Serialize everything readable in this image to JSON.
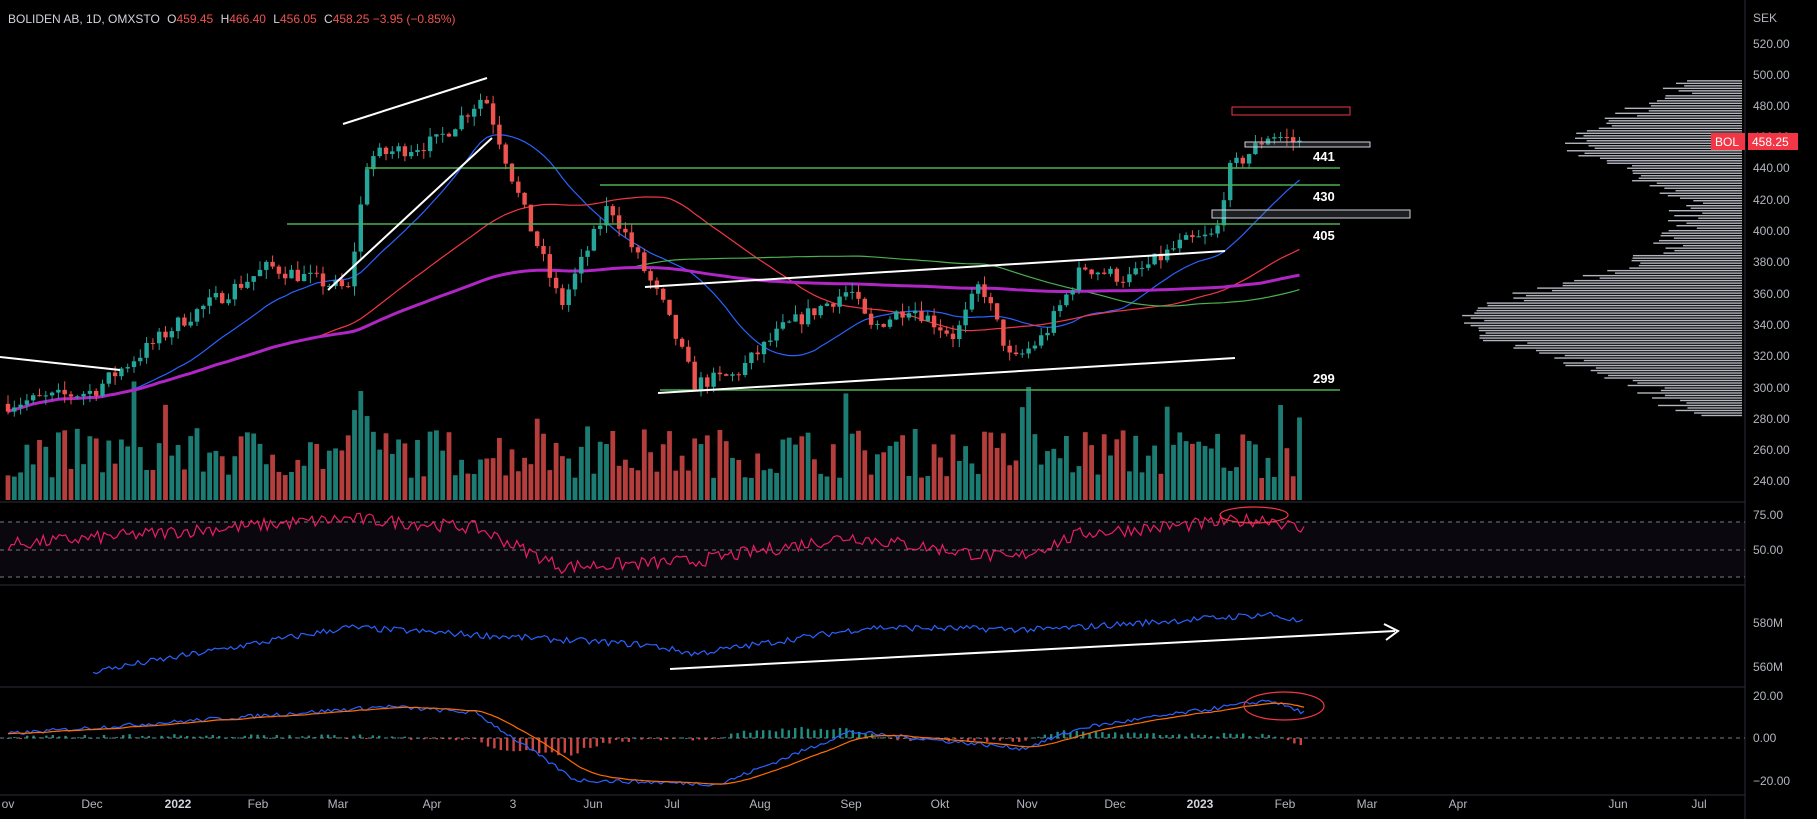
{
  "header": {
    "symbol": "BOLIDEN AB, 1D, OMXSTO",
    "o_label": "O",
    "o": "459.45",
    "h_label": "H",
    "h": "466.40",
    "l_label": "L",
    "l": "456.05",
    "c_label": "C",
    "c": "458.25",
    "change": "−3.95 (−0.85%)"
  },
  "price_axis": {
    "currency": "SEK",
    "ticks": [
      "520.00",
      "500.00",
      "480.00",
      "460.00",
      "440.00",
      "420.00",
      "400.00",
      "380.00",
      "360.00",
      "340.00",
      "320.00",
      "300.00",
      "280.00",
      "260.00",
      "240.00"
    ],
    "last_label": "BOL",
    "last_value": "458.25"
  },
  "rsi_axis": {
    "ticks": [
      "75.00",
      "50.00"
    ]
  },
  "obv_axis": {
    "ticks": [
      "580M",
      "560M"
    ]
  },
  "macd_axis": {
    "ticks": [
      "20.00",
      "0.00",
      "−20.00"
    ]
  },
  "time_axis": {
    "labels": [
      "ov",
      "Dec",
      "2022",
      "Feb",
      "Mar",
      "Apr",
      "3",
      "Jun",
      "Jul",
      "Aug",
      "Sep",
      "Okt",
      "Nov",
      "Dec",
      "2023",
      "Feb",
      "Mar",
      "Apr",
      "Jun",
      "Jul"
    ]
  },
  "annotations": {
    "levels": [
      "441",
      "430",
      "405",
      "299"
    ]
  },
  "colors": {
    "background": "#000000",
    "up": "#26a69a",
    "down": "#ef5350",
    "sma_fast": "#2962ff",
    "sma_mid": "#f23645",
    "sma_slow": "#4caf50",
    "sma_long": "#b026c4",
    "rsi": "#e91e63",
    "obv": "#2962ff",
    "macd": "#2962ff",
    "signal": "#ff6d00",
    "levels": "#4caf50",
    "trendline": "#ffffff",
    "volume_profile": "#b2b5be"
  },
  "chart_data": {
    "type": "candlestick",
    "symbol": "BOLIDEN AB",
    "interval": "1D",
    "exchange": "OMXSTO",
    "last": {
      "open": 459.45,
      "high": 466.4,
      "low": 456.05,
      "close": 458.25,
      "change": -3.95,
      "change_pct": -0.85
    },
    "price_ylim": [
      230,
      530
    ],
    "key_points": [
      {
        "date": "2021-11-01",
        "close": 292
      },
      {
        "date": "2021-12-01",
        "close": 300
      },
      {
        "date": "2022-01-01",
        "close": 345
      },
      {
        "date": "2022-02-01",
        "close": 380
      },
      {
        "date": "2022-03-01",
        "close": 365
      },
      {
        "date": "2022-03-08",
        "close": 450
      },
      {
        "date": "2022-04-01",
        "close": 460
      },
      {
        "date": "2022-04-18",
        "close": 490
      },
      {
        "date": "2022-05-01",
        "close": 420
      },
      {
        "date": "2022-05-15",
        "close": 355
      },
      {
        "date": "2022-06-01",
        "close": 420
      },
      {
        "date": "2022-06-20",
        "close": 355
      },
      {
        "date": "2022-07-01",
        "close": 305
      },
      {
        "date": "2022-07-15",
        "close": 310
      },
      {
        "date": "2022-08-01",
        "close": 340
      },
      {
        "date": "2022-08-25",
        "close": 365
      },
      {
        "date": "2022-09-01",
        "close": 340
      },
      {
        "date": "2022-09-15",
        "close": 355
      },
      {
        "date": "2022-10-01",
        "close": 335
      },
      {
        "date": "2022-10-10",
        "close": 370
      },
      {
        "date": "2022-10-21",
        "close": 318
      },
      {
        "date": "2022-11-01",
        "close": 335
      },
      {
        "date": "2022-11-15",
        "close": 380
      },
      {
        "date": "2022-12-01",
        "close": 372
      },
      {
        "date": "2022-12-20",
        "close": 395
      },
      {
        "date": "2023-01-01",
        "close": 400
      },
      {
        "date": "2023-01-05",
        "close": 440
      },
      {
        "date": "2023-01-20",
        "close": 465
      },
      {
        "date": "2023-02-01",
        "close": 458.25
      }
    ],
    "horizontal_levels": [
      441,
      430,
      405,
      299
    ],
    "resistance_zone": [
      475,
      480
    ],
    "rsi": {
      "ticks": [
        75,
        50
      ],
      "key_points": [
        {
          "date": "2021-11-01",
          "value": 55
        },
        {
          "date": "2022-03-01",
          "value": 78
        },
        {
          "date": "2022-04-15",
          "value": 70
        },
        {
          "date": "2022-05-15",
          "value": 35
        },
        {
          "date": "2022-07-01",
          "value": 40
        },
        {
          "date": "2022-08-25",
          "value": 62
        },
        {
          "date": "2022-10-21",
          "value": 42
        },
        {
          "date": "2022-11-15",
          "value": 65
        },
        {
          "date": "2023-01-20",
          "value": 78
        },
        {
          "date": "2023-02-01",
          "value": 67
        }
      ]
    },
    "obv": {
      "ticks": [
        "580M",
        "560M"
      ],
      "key_points": [
        {
          "date": "2021-12-01",
          "value": 558
        },
        {
          "date": "2022-03-01",
          "value": 578
        },
        {
          "date": "2022-06-15",
          "value": 570
        },
        {
          "date": "2022-07-01",
          "value": 566
        },
        {
          "date": "2022-09-01",
          "value": 578
        },
        {
          "date": "2022-11-01",
          "value": 577
        },
        {
          "date": "2023-01-20",
          "value": 584
        },
        {
          "date": "2023-02-01",
          "value": 580
        }
      ]
    },
    "macd": {
      "ticks": [
        20,
        0,
        -20
      ],
      "key_points": [
        {
          "date": "2021-11-01",
          "value": 2
        },
        {
          "date": "2022-03-15",
          "value": 15
        },
        {
          "date": "2022-04-15",
          "value": 12
        },
        {
          "date": "2022-05-20",
          "value": -20
        },
        {
          "date": "2022-07-10",
          "value": -22
        },
        {
          "date": "2022-08-25",
          "value": 3
        },
        {
          "date": "2022-10-25",
          "value": -5
        },
        {
          "date": "2022-11-15",
          "value": 5
        },
        {
          "date": "2023-01-20",
          "value": 18
        },
        {
          "date": "2023-02-01",
          "value": 12
        }
      ]
    }
  }
}
